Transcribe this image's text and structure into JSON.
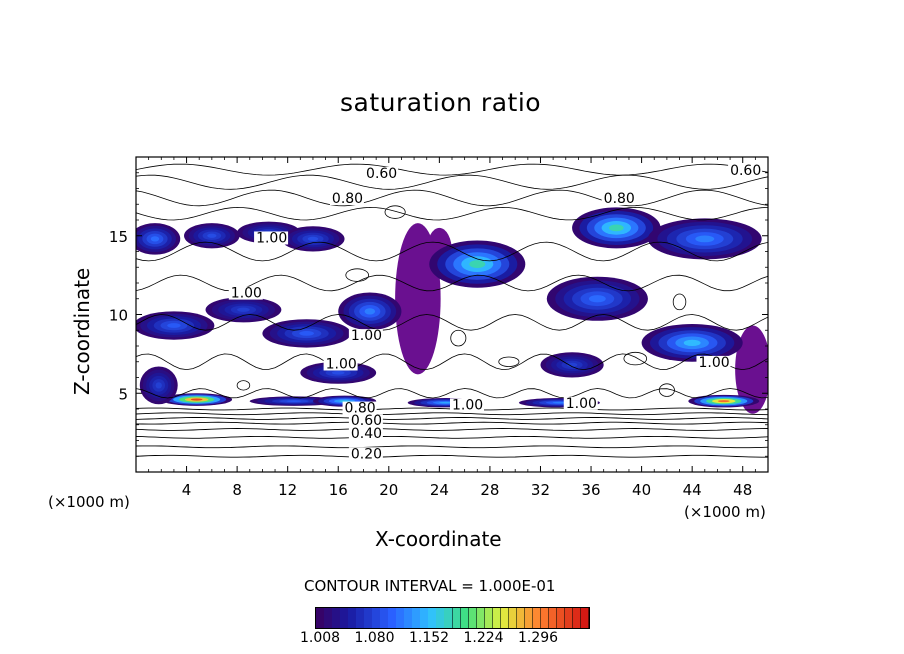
{
  "chart_data": {
    "type": "heatmap",
    "title": "saturation ratio",
    "xlabel": "X-coordinate",
    "ylabel": "Z-coordinate",
    "x_unit_left": "(×1000 m)",
    "x_unit_right": "(×1000 m)",
    "xlim": [
      0,
      50
    ],
    "ylim": [
      0,
      20
    ],
    "xticks": [
      4,
      8,
      12,
      16,
      20,
      24,
      28,
      32,
      36,
      40,
      44,
      48
    ],
    "yticks": [
      5,
      10,
      15
    ],
    "contour_interval_text": "CONTOUR INTERVAL = 1.000E-01",
    "colorbar_ticks": [
      "1.008",
      "1.080",
      "1.152",
      "1.224",
      "1.296"
    ],
    "colorbar_range": [
      0.99,
      1.33
    ],
    "contour_labels": [
      {
        "text": "0.60",
        "x": 18.2,
        "z": 18.8
      },
      {
        "text": "0.60",
        "x": 47.0,
        "z": 19.0
      },
      {
        "text": "0.80",
        "x": 15.5,
        "z": 17.2
      },
      {
        "text": "0.80",
        "x": 37.0,
        "z": 17.2
      },
      {
        "text": "1.00",
        "x": 9.5,
        "z": 14.7
      },
      {
        "text": "1.00",
        "x": 7.5,
        "z": 11.2
      },
      {
        "text": "1.00",
        "x": 17.0,
        "z": 8.5
      },
      {
        "text": "1.00",
        "x": 15.0,
        "z": 6.7
      },
      {
        "text": "1.00",
        "x": 25.0,
        "z": 4.1
      },
      {
        "text": "1.00",
        "x": 34.0,
        "z": 4.2
      },
      {
        "text": "1.00",
        "x": 44.5,
        "z": 6.8
      },
      {
        "text": "0.80",
        "x": 16.5,
        "z": 3.9
      },
      {
        "text": "0.60",
        "x": 17.0,
        "z": 3.1
      },
      {
        "text": "0.40",
        "x": 17.0,
        "z": 2.3
      },
      {
        "text": "0.20",
        "x": 17.0,
        "z": 1.0
      }
    ],
    "contour_lines": [
      {
        "level": "0.20",
        "z_values": [
          1.0
        ]
      },
      {
        "level": "0.30",
        "z_values": [
          1.6
        ]
      },
      {
        "level": "0.40",
        "z_values": [
          2.2
        ]
      },
      {
        "level": "0.50",
        "z_values": [
          2.7
        ]
      },
      {
        "level": "0.60",
        "z_values": [
          3.1
        ]
      },
      {
        "level": "0.70",
        "z_values": [
          3.4
        ]
      },
      {
        "level": "0.80",
        "z_values": [
          3.7
        ]
      },
      {
        "level": "0.90",
        "z_values": [
          4.0
        ]
      }
    ],
    "grid": false,
    "supersaturation_blobs": [
      {
        "x": 4.8,
        "z": 4.6,
        "rx": 2.8,
        "rz": 0.4,
        "peak": 1.3
      },
      {
        "x": 12.5,
        "z": 4.5,
        "rx": 3.5,
        "rz": 0.3,
        "peak": 1.08
      },
      {
        "x": 16.5,
        "z": 4.5,
        "rx": 2.5,
        "rz": 0.35,
        "peak": 1.14
      },
      {
        "x": 24.5,
        "z": 4.4,
        "rx": 3.0,
        "rz": 0.3,
        "peak": 1.12
      },
      {
        "x": 33.5,
        "z": 4.4,
        "rx": 3.2,
        "rz": 0.3,
        "peak": 1.1
      },
      {
        "x": 46.5,
        "z": 4.5,
        "rx": 2.8,
        "rz": 0.4,
        "peak": 1.28
      },
      {
        "x": 1.5,
        "z": 14.8,
        "rx": 2.0,
        "rz": 1.0,
        "peak": 1.09
      },
      {
        "x": 6.0,
        "z": 15.0,
        "rx": 2.2,
        "rz": 0.8,
        "peak": 1.07
      },
      {
        "x": 10.5,
        "z": 15.2,
        "rx": 2.5,
        "rz": 0.7,
        "peak": 1.06
      },
      {
        "x": 14.0,
        "z": 14.8,
        "rx": 2.5,
        "rz": 0.8,
        "peak": 1.07
      },
      {
        "x": 3.0,
        "z": 9.3,
        "rx": 3.2,
        "rz": 0.9,
        "peak": 1.08
      },
      {
        "x": 8.5,
        "z": 10.3,
        "rx": 3.0,
        "rz": 0.8,
        "peak": 1.06
      },
      {
        "x": 13.5,
        "z": 8.8,
        "rx": 3.5,
        "rz": 0.9,
        "peak": 1.08
      },
      {
        "x": 18.5,
        "z": 10.2,
        "rx": 2.5,
        "rz": 1.2,
        "peak": 1.1
      },
      {
        "x": 27.0,
        "z": 13.2,
        "rx": 3.8,
        "rz": 1.5,
        "peak": 1.16
      },
      {
        "x": 38.0,
        "z": 15.5,
        "rx": 3.5,
        "rz": 1.3,
        "peak": 1.16
      },
      {
        "x": 45.0,
        "z": 14.8,
        "rx": 4.5,
        "rz": 1.3,
        "peak": 1.1
      },
      {
        "x": 36.5,
        "z": 11.0,
        "rx": 4.0,
        "rz": 1.4,
        "peak": 1.09
      },
      {
        "x": 44.0,
        "z": 8.2,
        "rx": 4.0,
        "rz": 1.2,
        "peak": 1.13
      },
      {
        "x": 34.5,
        "z": 6.8,
        "rx": 2.5,
        "rz": 0.8,
        "peak": 1.06
      },
      {
        "x": 16.0,
        "z": 6.3,
        "rx": 3.0,
        "rz": 0.7,
        "peak": 1.07
      },
      {
        "x": 1.8,
        "z": 5.5,
        "rx": 1.5,
        "rz": 1.2,
        "peak": 1.06
      }
    ],
    "purple_regions": [
      {
        "x": 22.3,
        "z": 11.0,
        "rx": 1.8,
        "rz": 4.8
      },
      {
        "x": 48.8,
        "z": 6.5,
        "rx": 1.4,
        "rz": 2.8
      },
      {
        "x": 24.0,
        "z": 14.0,
        "rx": 1.0,
        "rz": 1.5
      }
    ]
  }
}
